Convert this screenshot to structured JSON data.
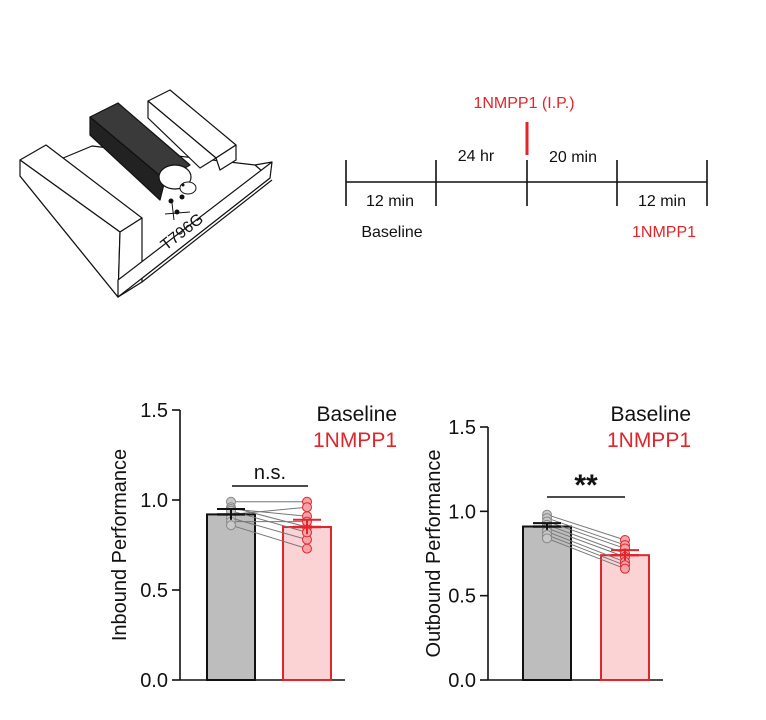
{
  "colors": {
    "baseline_fill": "#bdbdbd",
    "baseline_point": "#c8c8c8",
    "drug_fill": "#fbd3d5",
    "drug_point": "#f4a3a8",
    "drug": "#e0252b",
    "ink": "#111111",
    "pair_line": "#777777"
  },
  "maze": {
    "mutation_label": "T796G",
    "maze_icon": "maze-icon",
    "mouse_icon": "mouse-icon"
  },
  "timeline": {
    "injection_label": "1NMPP1 (I.P.)",
    "segment_labels": [
      "12 min",
      "24 hr",
      "20 min",
      "12 min"
    ],
    "baseline_label": "Baseline",
    "drug_label": "1NMPP1"
  },
  "chart_data": [
    {
      "type": "bar",
      "categories": [
        "Baseline",
        "1NMPP1"
      ],
      "values": [
        0.92,
        0.85
      ],
      "errors": [
        0.03,
        0.04
      ],
      "ylabel": "Inbound Performance",
      "ylim": [
        0,
        1.5
      ],
      "yticks": [
        "0.0",
        "0.5",
        "1.0",
        "1.5"
      ],
      "legend": [
        "Baseline",
        "1NMPP1"
      ],
      "legend_position": "top-right",
      "significance": "n.s.",
      "paired_points": [
        [
          0.99,
          0.99
        ],
        [
          0.96,
          0.85
        ],
        [
          0.95,
          0.91
        ],
        [
          0.92,
          0.96
        ],
        [
          0.9,
          0.78
        ],
        [
          0.88,
          0.88
        ],
        [
          0.86,
          0.73
        ],
        [
          0.94,
          0.82
        ]
      ]
    },
    {
      "type": "bar",
      "categories": [
        "Baseline",
        "1NMPP1"
      ],
      "values": [
        0.91,
        0.74
      ],
      "errors": [
        0.02,
        0.03
      ],
      "ylabel": "Outbound Performance",
      "ylim": [
        0,
        1.5
      ],
      "yticks": [
        "0.0",
        "0.5",
        "1.0",
        "1.5"
      ],
      "legend": [
        "Baseline",
        "1NMPP1"
      ],
      "legend_position": "top-right",
      "significance": "**",
      "paired_points": [
        [
          0.98,
          0.83
        ],
        [
          0.96,
          0.8
        ],
        [
          0.94,
          0.78
        ],
        [
          0.92,
          0.75
        ],
        [
          0.9,
          0.73
        ],
        [
          0.88,
          0.7
        ],
        [
          0.86,
          0.68
        ],
        [
          0.84,
          0.66
        ]
      ]
    }
  ]
}
